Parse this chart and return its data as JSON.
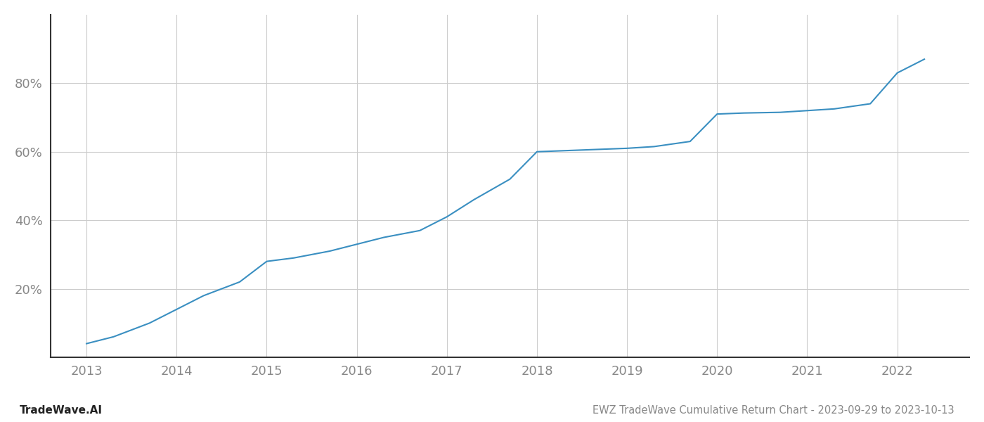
{
  "x": [
    2013,
    2013.3,
    2013.7,
    2014,
    2014.3,
    2014.7,
    2015,
    2015.3,
    2015.7,
    2016,
    2016.3,
    2016.7,
    2017,
    2017.3,
    2017.7,
    2018,
    2018.2,
    2018.5,
    2019,
    2019.3,
    2019.7,
    2020,
    2020.3,
    2020.7,
    2021,
    2021.3,
    2021.7,
    2022,
    2022.3
  ],
  "y": [
    4,
    6,
    10,
    14,
    18,
    22,
    28,
    29,
    31,
    33,
    35,
    37,
    41,
    46,
    52,
    60,
    60.2,
    60.5,
    61,
    61.5,
    63,
    71,
    71.3,
    71.5,
    72,
    72.5,
    74,
    83,
    87
  ],
  "line_color": "#3a8fc1",
  "line_width": 1.5,
  "title": "EWZ TradeWave Cumulative Return Chart - 2023-09-29 to 2023-10-13",
  "watermark": "TradeWave.AI",
  "ytick_labels": [
    "20%",
    "40%",
    "60%",
    "80%"
  ],
  "ytick_values": [
    20,
    40,
    60,
    80
  ],
  "xtick_labels": [
    "2013",
    "2014",
    "2015",
    "2016",
    "2017",
    "2018",
    "2019",
    "2020",
    "2021",
    "2022"
  ],
  "xtick_values": [
    2013,
    2014,
    2015,
    2016,
    2017,
    2018,
    2019,
    2020,
    2021,
    2022
  ],
  "xlim": [
    2012.6,
    2022.8
  ],
  "ylim": [
    0,
    100
  ],
  "background_color": "#ffffff",
  "grid_color": "#cccccc",
  "left_spine_color": "#333333",
  "bottom_spine_color": "#333333",
  "title_fontsize": 10.5,
  "watermark_fontsize": 11,
  "tick_label_color": "#888888",
  "tick_label_fontsize": 13
}
